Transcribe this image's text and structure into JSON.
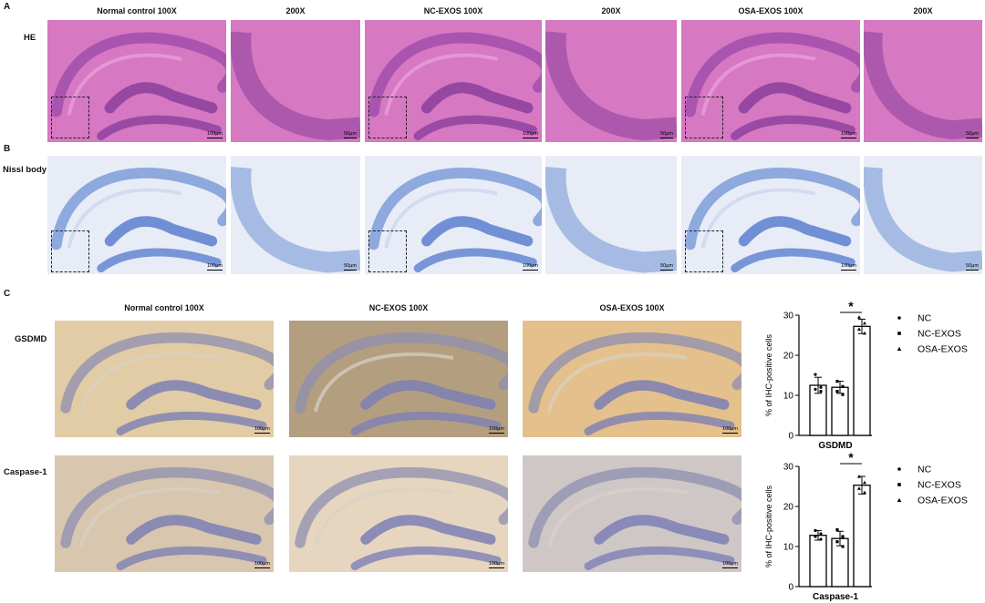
{
  "panels": {
    "a": {
      "letter": "A",
      "row_label": "HE",
      "headers": [
        "Normal control 100X",
        "200X",
        "NC-EXOS 100X",
        "200X",
        "OSA-EXOS 100X",
        "200X"
      ],
      "scale_low": "100μm",
      "scale_high": "50μm"
    },
    "b": {
      "letter": "B",
      "row_label": "Nissl body",
      "scale_low": "100μm",
      "scale_high": "50μm"
    },
    "c": {
      "letter": "C",
      "headers": [
        "Normal control 100X",
        "NC-EXOS 100X",
        "OSA-EXOS 100X"
      ],
      "rows": [
        "GSDMD",
        "Caspase-1"
      ],
      "scale": "100μm"
    }
  },
  "colors": {
    "he": "#d678c2",
    "nissl_bg": "#e8ecf6",
    "nissl_stain": "#6f93d6",
    "ihc_light": "#e2cca6",
    "ihc_dark": "#b49e80",
    "ihc_orange": "#e4c08c",
    "ihc_purple": "#7d7fb4"
  },
  "chart_data": [
    {
      "type": "bar",
      "categories": [
        "NC",
        "NC-EXOS",
        "OSA-EXOS"
      ],
      "values": [
        12.5,
        12.0,
        27.2
      ],
      "errors": [
        2.0,
        1.5,
        1.8
      ],
      "points": [
        [
          15.2,
          12.0,
          11.5,
          11.0
        ],
        [
          13.5,
          12.2,
          11.0,
          10.2
        ],
        [
          29.5,
          28.0,
          26.5,
          25.5
        ]
      ],
      "title": "",
      "xlabel": "GSDMD",
      "ylabel": "% of IHC-positive cells",
      "ylim": [
        0,
        30
      ],
      "yticks": [
        0,
        10,
        20,
        30
      ],
      "significance": "*",
      "legend": [
        {
          "marker": "circle",
          "label": "NC"
        },
        {
          "marker": "square",
          "label": "NC-EXOS"
        },
        {
          "marker": "triangle",
          "label": "OSA-EXOS"
        }
      ]
    },
    {
      "type": "bar",
      "categories": [
        "NC",
        "NC-EXOS",
        "OSA-EXOS"
      ],
      "values": [
        12.8,
        12.0,
        25.3
      ],
      "errors": [
        1.2,
        1.8,
        2.2
      ],
      "points": [
        [
          14.0,
          13.2,
          12.5,
          11.8
        ],
        [
          14.2,
          12.5,
          11.2,
          10.0
        ],
        [
          27.5,
          26.0,
          24.5,
          23.5
        ]
      ],
      "title": "",
      "xlabel": "Caspase-1",
      "ylabel": "% of IHC-positive cells",
      "ylim": [
        0,
        30
      ],
      "yticks": [
        0,
        10,
        20,
        30
      ],
      "significance": "*",
      "legend": [
        {
          "marker": "circle",
          "label": "NC"
        },
        {
          "marker": "square",
          "label": "NC-EXOS"
        },
        {
          "marker": "triangle",
          "label": "OSA-EXOS"
        }
      ]
    }
  ]
}
